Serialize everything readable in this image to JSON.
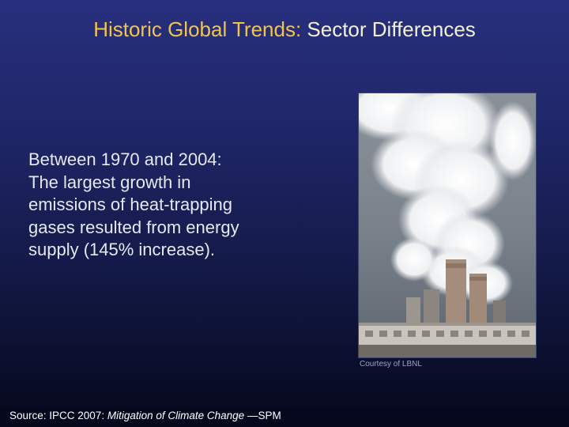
{
  "slide": {
    "title": {
      "part1": "Historic Global Trends:",
      "part2": " Sector Differences"
    },
    "body_lines": [
      "Between 1970 and 2004:",
      "The largest growth in",
      "emissions of heat-trapping",
      "gases resulted from energy",
      "supply (145% increase)."
    ],
    "photo": {
      "icon": "power-plant-smokestacks-photo",
      "credit": "Courtesy of LBNL"
    },
    "source": {
      "prefix": "Source: ",
      "org": "IPCC 2007",
      "sep": ": ",
      "work": "Mitigation of Climate Change",
      "suffix": " —SPM"
    }
  }
}
